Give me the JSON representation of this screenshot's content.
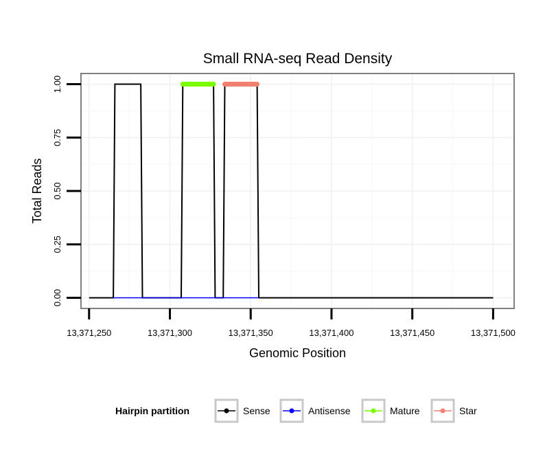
{
  "chart_data": {
    "type": "line",
    "title": "Small RNA-seq Read Density",
    "xlabel": "Genomic Position",
    "ylabel": "Total Reads",
    "xlim": [
      13371245,
      13371513
    ],
    "ylim": [
      -0.05,
      1.05
    ],
    "x_ticks": [
      13371250,
      13371300,
      13371350,
      13371400,
      13371450,
      13371500
    ],
    "x_tick_labels": [
      "13,371,250",
      "13,371,300",
      "13,371,350",
      "13,371,400",
      "13,371,450",
      "13,371,500"
    ],
    "y_ticks": [
      0,
      0.25,
      0.5,
      0.75,
      1
    ],
    "y_tick_labels": [
      "0.00",
      "0.25",
      "0.50",
      "0.75",
      "1.00"
    ],
    "grid": true,
    "legend_position": "bottom",
    "legend_title": "Hairpin partition",
    "series": [
      {
        "name": "Sense",
        "color": "#000000",
        "x": [
          13371250,
          13371265,
          13371266,
          13371282,
          13371283,
          13371307,
          13371308,
          13371327,
          13371328,
          13371333,
          13371334,
          13371354,
          13371355,
          13371500
        ],
        "y": [
          0,
          0,
          1,
          1,
          0,
          0,
          1,
          1,
          0,
          0,
          1,
          1,
          0,
          0
        ]
      },
      {
        "name": "Antisense",
        "color": "#0000ff",
        "x": [
          13371265,
          13371355
        ],
        "y": [
          0,
          0
        ]
      },
      {
        "name": "Mature",
        "color": "#7cfc00",
        "x": [
          13371308,
          13371327
        ],
        "y": [
          1,
          1
        ]
      },
      {
        "name": "Star",
        "color": "#f08070",
        "x": [
          13371334,
          13371354
        ],
        "y": [
          1,
          1
        ]
      }
    ]
  }
}
